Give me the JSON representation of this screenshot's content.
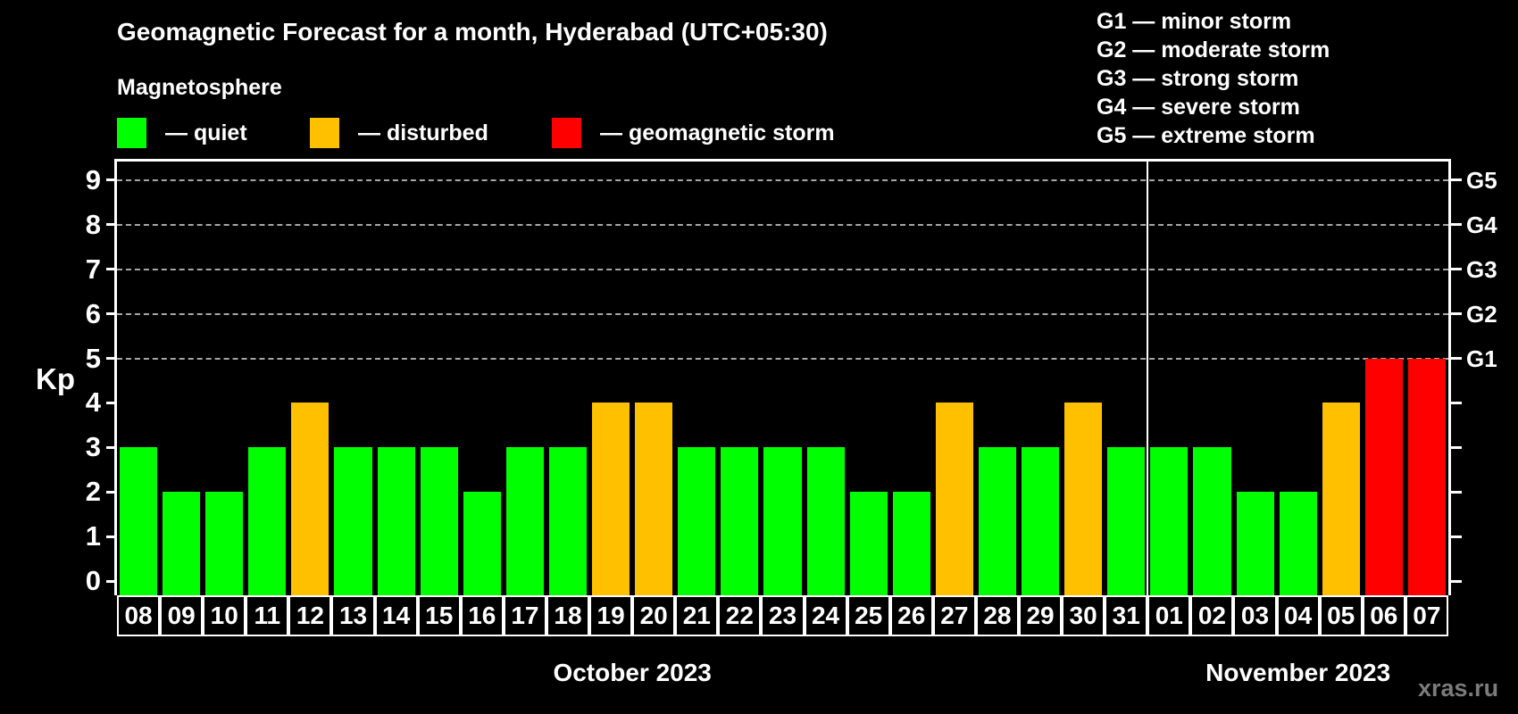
{
  "header": {
    "legend": {
      "title": "Magnetosphere",
      "items": [
        {
          "label": "— quiet",
          "state": "quiet",
          "color": "#00ff00"
        },
        {
          "label": "— disturbed",
          "state": "disturbed",
          "color": "#ffc000"
        },
        {
          "label": "— geomagnetic storm",
          "state": "storm",
          "color": "#ff0000"
        }
      ]
    },
    "g_legend": {
      "items": [
        "G1 — minor storm",
        "G2 — moderate storm",
        "G3 — strong storm",
        "G4 — severe storm",
        "G5 — extreme storm"
      ]
    }
  },
  "watermark": "xras.ru",
  "chart_data": {
    "type": "bar",
    "title": "Geomagnetic Forecast for a month, Hyderabad (UTC+05:30)",
    "xlabel": "",
    "ylabel": "Kp",
    "ylim": [
      0,
      9.4
    ],
    "yticks": [
      0,
      1,
      2,
      3,
      4,
      5,
      6,
      7,
      8,
      9
    ],
    "grid_levels": [
      5,
      6,
      7,
      8,
      9
    ],
    "grid_style": "horizontal dashed gray lines at Kp 5-9 only",
    "right_axis": [
      {
        "kp": 5,
        "label": "G1"
      },
      {
        "kp": 6,
        "label": "G2"
      },
      {
        "kp": 7,
        "label": "G3"
      },
      {
        "kp": 8,
        "label": "G4"
      },
      {
        "kp": 9,
        "label": "G5"
      }
    ],
    "categories": [
      "08",
      "09",
      "10",
      "11",
      "12",
      "13",
      "14",
      "15",
      "16",
      "17",
      "18",
      "19",
      "20",
      "21",
      "22",
      "23",
      "24",
      "25",
      "26",
      "27",
      "28",
      "29",
      "30",
      "31",
      "01",
      "02",
      "03",
      "04",
      "05",
      "06",
      "07"
    ],
    "values": [
      3,
      2,
      2,
      3,
      4,
      3,
      3,
      3,
      2,
      3,
      3,
      4,
      4,
      3,
      3,
      3,
      3,
      2,
      2,
      4,
      3,
      3,
      4,
      3,
      3,
      3,
      2,
      2,
      4,
      5,
      5
    ],
    "states": [
      "quiet",
      "quiet",
      "quiet",
      "quiet",
      "disturbed",
      "quiet",
      "quiet",
      "quiet",
      "quiet",
      "quiet",
      "quiet",
      "disturbed",
      "disturbed",
      "quiet",
      "quiet",
      "quiet",
      "quiet",
      "quiet",
      "quiet",
      "disturbed",
      "quiet",
      "quiet",
      "disturbed",
      "quiet",
      "quiet",
      "quiet",
      "quiet",
      "quiet",
      "disturbed",
      "storm",
      "storm"
    ],
    "colors": {
      "quiet": "#00ff00",
      "disturbed": "#ffc000",
      "storm": "#ff0000"
    },
    "months": [
      {
        "label": "October 2023",
        "days": 24
      },
      {
        "label": "November 2023",
        "days": 7
      }
    ]
  }
}
